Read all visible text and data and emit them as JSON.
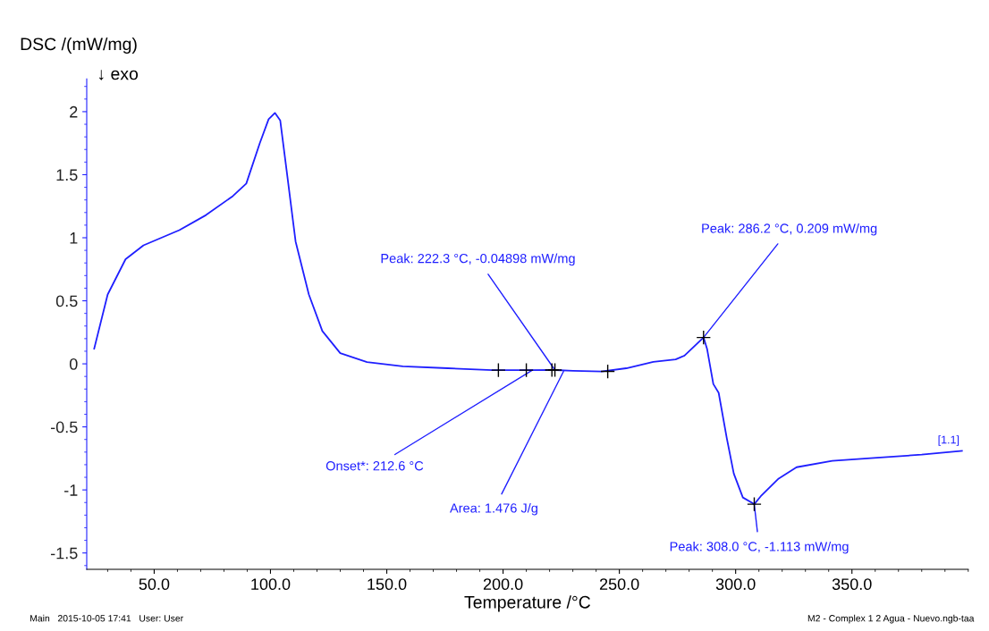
{
  "chart_data": {
    "type": "line",
    "xlabel": "Temperature /°C",
    "ylabel": "DSC /(mW/mg)",
    "xlim": [
      21,
      400
    ],
    "ylim": [
      -1.63,
      2.26
    ],
    "xticks": [
      {
        "value": 50,
        "label": "50.0"
      },
      {
        "value": 100,
        "label": "100.0"
      },
      {
        "value": 150,
        "label": "150.0"
      },
      {
        "value": 200,
        "label": "200.0"
      },
      {
        "value": 250,
        "label": "250.0"
      },
      {
        "value": 300,
        "label": "300.0"
      },
      {
        "value": 350,
        "label": "350.0"
      }
    ],
    "yticks": [
      -1.5,
      -1,
      -0.5,
      0,
      0.5,
      1,
      1.5,
      2
    ],
    "grid": false,
    "legend": false,
    "series": [
      {
        "name": "[1.1]",
        "color": "#1f1fff",
        "x": [
          24.2,
          30,
          37.7,
          45.4,
          60.8,
          72.3,
          83.8,
          89.6,
          95.4,
          99.2,
          101.9,
          104.2,
          106.9,
          110.8,
          116.5,
          122.3,
          130,
          141.5,
          156.9,
          176.2,
          195.4,
          210.8,
          222.3,
          230,
          242.3,
          253,
          264.6,
          274.2,
          278,
          286.2,
          287.7,
          290.4,
          292.7,
          296.2,
          299.2,
          303.1,
          308,
          310.8,
          318.5,
          326.2,
          341.5,
          360.8,
          380,
          397.3
        ],
        "values": [
          0.12,
          0.55,
          0.83,
          0.94,
          1.06,
          1.18,
          1.33,
          1.43,
          1.75,
          1.94,
          1.99,
          1.93,
          1.54,
          0.97,
          0.55,
          0.26,
          0.085,
          0.014,
          -0.02,
          -0.035,
          -0.05,
          -0.05,
          -0.049,
          -0.055,
          -0.06,
          -0.035,
          0.015,
          0.035,
          0.065,
          0.209,
          0.12,
          -0.16,
          -0.23,
          -0.59,
          -0.87,
          -1.06,
          -1.113,
          -1.05,
          -0.91,
          -0.82,
          -0.77,
          -0.745,
          -0.72,
          -0.69
        ]
      },
      {
        "type": "scatter",
        "marker": "cross",
        "color": "#000000",
        "x": [
          198,
          210,
          221,
          222.3,
          245,
          286.2,
          308
        ],
        "values": [
          -0.05,
          -0.05,
          -0.049,
          -0.049,
          -0.06,
          0.209,
          -1.113
        ]
      }
    ],
    "annotations": [
      "↓ exo",
      "Main   2015-10-05 17:41   User: User",
      "M2 - Complex 1 2 Agua - Nuevo.ngb-taa",
      {
        "text": "Peak: 222.3 °C, -0.04898 mW/mg",
        "x": 222.3,
        "y": -0.049
      },
      {
        "text": "Onset*: 212.6 °C",
        "x": 212.6,
        "y": -0.05
      },
      {
        "text": "Area: 1.476 J/g",
        "x": 226,
        "y": -0.06
      },
      {
        "text": "Peak: 286.2 °C, 0.209 mW/mg",
        "x": 286.2,
        "y": 0.209
      },
      {
        "text": "Peak: 308.0 °C, -1.113 mW/mg",
        "x": 308,
        "y": -1.113
      }
    ]
  }
}
